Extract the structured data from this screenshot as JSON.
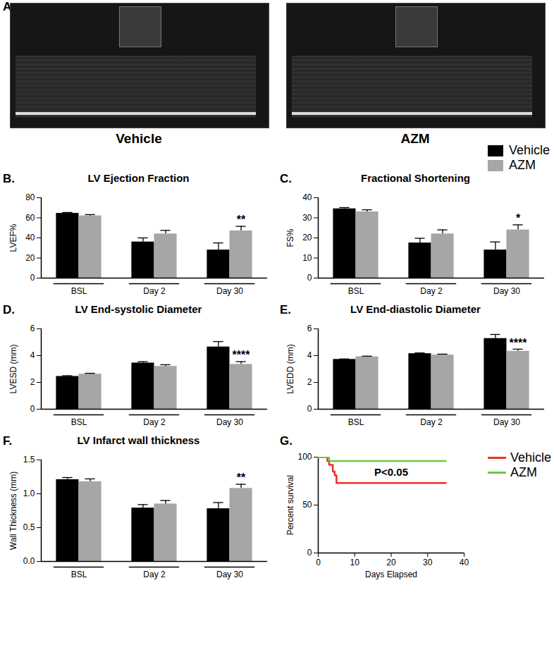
{
  "panel_a": {
    "label": "A.",
    "images": [
      "Vehicle",
      "AZM"
    ]
  },
  "chart_data": [
    {
      "type": "bar",
      "title": "LV Ejection Fraction",
      "y_label": "LVEF%",
      "categories": [
        "BSL",
        "Day 2",
        "Day 30"
      ],
      "series": [
        {
          "name": "Vehicle",
          "color": "#000000",
          "values": [
            64.5,
            36,
            28
          ],
          "errors": [
            0.8,
            4,
            7
          ]
        },
        {
          "name": "AZM",
          "color": "#a6a6a6",
          "values": [
            62,
            44,
            47
          ],
          "errors": [
            1.2,
            3.5,
            4.5
          ]
        }
      ],
      "ylim": [
        0,
        80
      ],
      "yticks": [
        0,
        20,
        40,
        60,
        80
      ],
      "annotations": [
        {
          "text": "B."
        },
        {
          "text": "**",
          "category": "Day 30",
          "series": "AZM"
        }
      ]
    },
    {
      "type": "bar",
      "title": "Fractional Shortening",
      "y_label": "FS%",
      "categories": [
        "BSL",
        "Day 2",
        "Day 30"
      ],
      "series": [
        {
          "name": "Vehicle",
          "color": "#000000",
          "values": [
            34.5,
            17.5,
            14
          ],
          "errors": [
            0.6,
            2.3,
            4
          ]
        },
        {
          "name": "AZM",
          "color": "#a6a6a6",
          "values": [
            33,
            22,
            24
          ],
          "errors": [
            1,
            2,
            2.5
          ]
        }
      ],
      "ylim": [
        0,
        40
      ],
      "yticks": [
        0,
        10,
        20,
        30,
        40
      ],
      "legend": "top-right",
      "annotations": [
        {
          "text": "C."
        },
        {
          "text": "*",
          "category": "Day 30",
          "series": "AZM"
        }
      ]
    },
    {
      "type": "bar",
      "title": "LV End-systolic Diameter",
      "y_label": "LVESD (mm)",
      "categories": [
        "BSL",
        "Day 2",
        "Day 30"
      ],
      "series": [
        {
          "name": "Vehicle",
          "color": "#000000",
          "values": [
            2.45,
            3.45,
            4.65
          ],
          "errors": [
            0.05,
            0.1,
            0.4
          ]
        },
        {
          "name": "AZM",
          "color": "#a6a6a6",
          "values": [
            2.62,
            3.2,
            3.35
          ],
          "errors": [
            0.06,
            0.12,
            0.2
          ]
        }
      ],
      "ylim": [
        0,
        6
      ],
      "yticks": [
        0,
        2,
        4,
        6
      ],
      "annotations": [
        {
          "text": "D."
        },
        {
          "text": "****",
          "category": "Day 30",
          "series": "AZM"
        }
      ]
    },
    {
      "type": "bar",
      "title": "LV End-diastolic Diameter",
      "y_label": "LVEDD (mm)",
      "categories": [
        "BSL",
        "Day 2",
        "Day 30"
      ],
      "series": [
        {
          "name": "Vehicle",
          "color": "#000000",
          "values": [
            3.72,
            4.15,
            5.28
          ],
          "errors": [
            0.03,
            0.05,
            0.3
          ]
        },
        {
          "name": "AZM",
          "color": "#a6a6a6",
          "values": [
            3.92,
            4.05,
            4.33
          ],
          "errors": [
            0.04,
            0.06,
            0.15
          ]
        }
      ],
      "ylim": [
        0,
        6
      ],
      "yticks": [
        0,
        2,
        4,
        6
      ],
      "annotations": [
        {
          "text": "E."
        },
        {
          "text": "****",
          "category": "Day 30",
          "series": "AZM"
        }
      ]
    },
    {
      "type": "bar",
      "title": "LV Infarct wall thickness",
      "y_label": "Wall Thickness (mm)",
      "categories": [
        "BSL",
        "Day 2",
        "Day 30"
      ],
      "series": [
        {
          "name": "Vehicle",
          "color": "#000000",
          "values": [
            1.21,
            0.79,
            0.78
          ],
          "errors": [
            0.03,
            0.05,
            0.09
          ]
        },
        {
          "name": "AZM",
          "color": "#a6a6a6",
          "values": [
            1.18,
            0.85,
            1.08
          ],
          "errors": [
            0.04,
            0.05,
            0.06
          ]
        }
      ],
      "ylim": [
        0,
        1.5
      ],
      "yticks": [
        {
          "value": 0,
          "label": "0.0"
        },
        0.5,
        {
          "value": 1,
          "label": "1.0"
        },
        1.5
      ],
      "annotations": [
        {
          "text": "F."
        },
        {
          "text": "**",
          "category": "Day 30",
          "series": "AZM"
        }
      ]
    },
    {
      "type": "line",
      "x_label": "Days Elapsed",
      "y_label": "Percent survival",
      "series": [
        {
          "name": "Vehicle",
          "color": "#e8332a",
          "line_style": "step",
          "x": [
            0,
            2.5,
            3,
            4,
            4.5,
            5,
            35
          ],
          "values": [
            100,
            96,
            92,
            85,
            81,
            73,
            73
          ]
        },
        {
          "name": "AZM",
          "color": "#66cc44",
          "line_style": "step",
          "x": [
            0,
            3,
            35
          ],
          "values": [
            100,
            96,
            96
          ]
        }
      ],
      "xlim": [
        0,
        40
      ],
      "xticks": [
        0,
        10,
        20,
        30,
        40
      ],
      "ylim": [
        0,
        100
      ],
      "yticks": [
        0,
        50,
        100
      ],
      "legend": "right",
      "annotations": [
        {
          "text": "G."
        },
        {
          "text": "P<0.05",
          "x": 20,
          "y": 84
        }
      ]
    }
  ]
}
